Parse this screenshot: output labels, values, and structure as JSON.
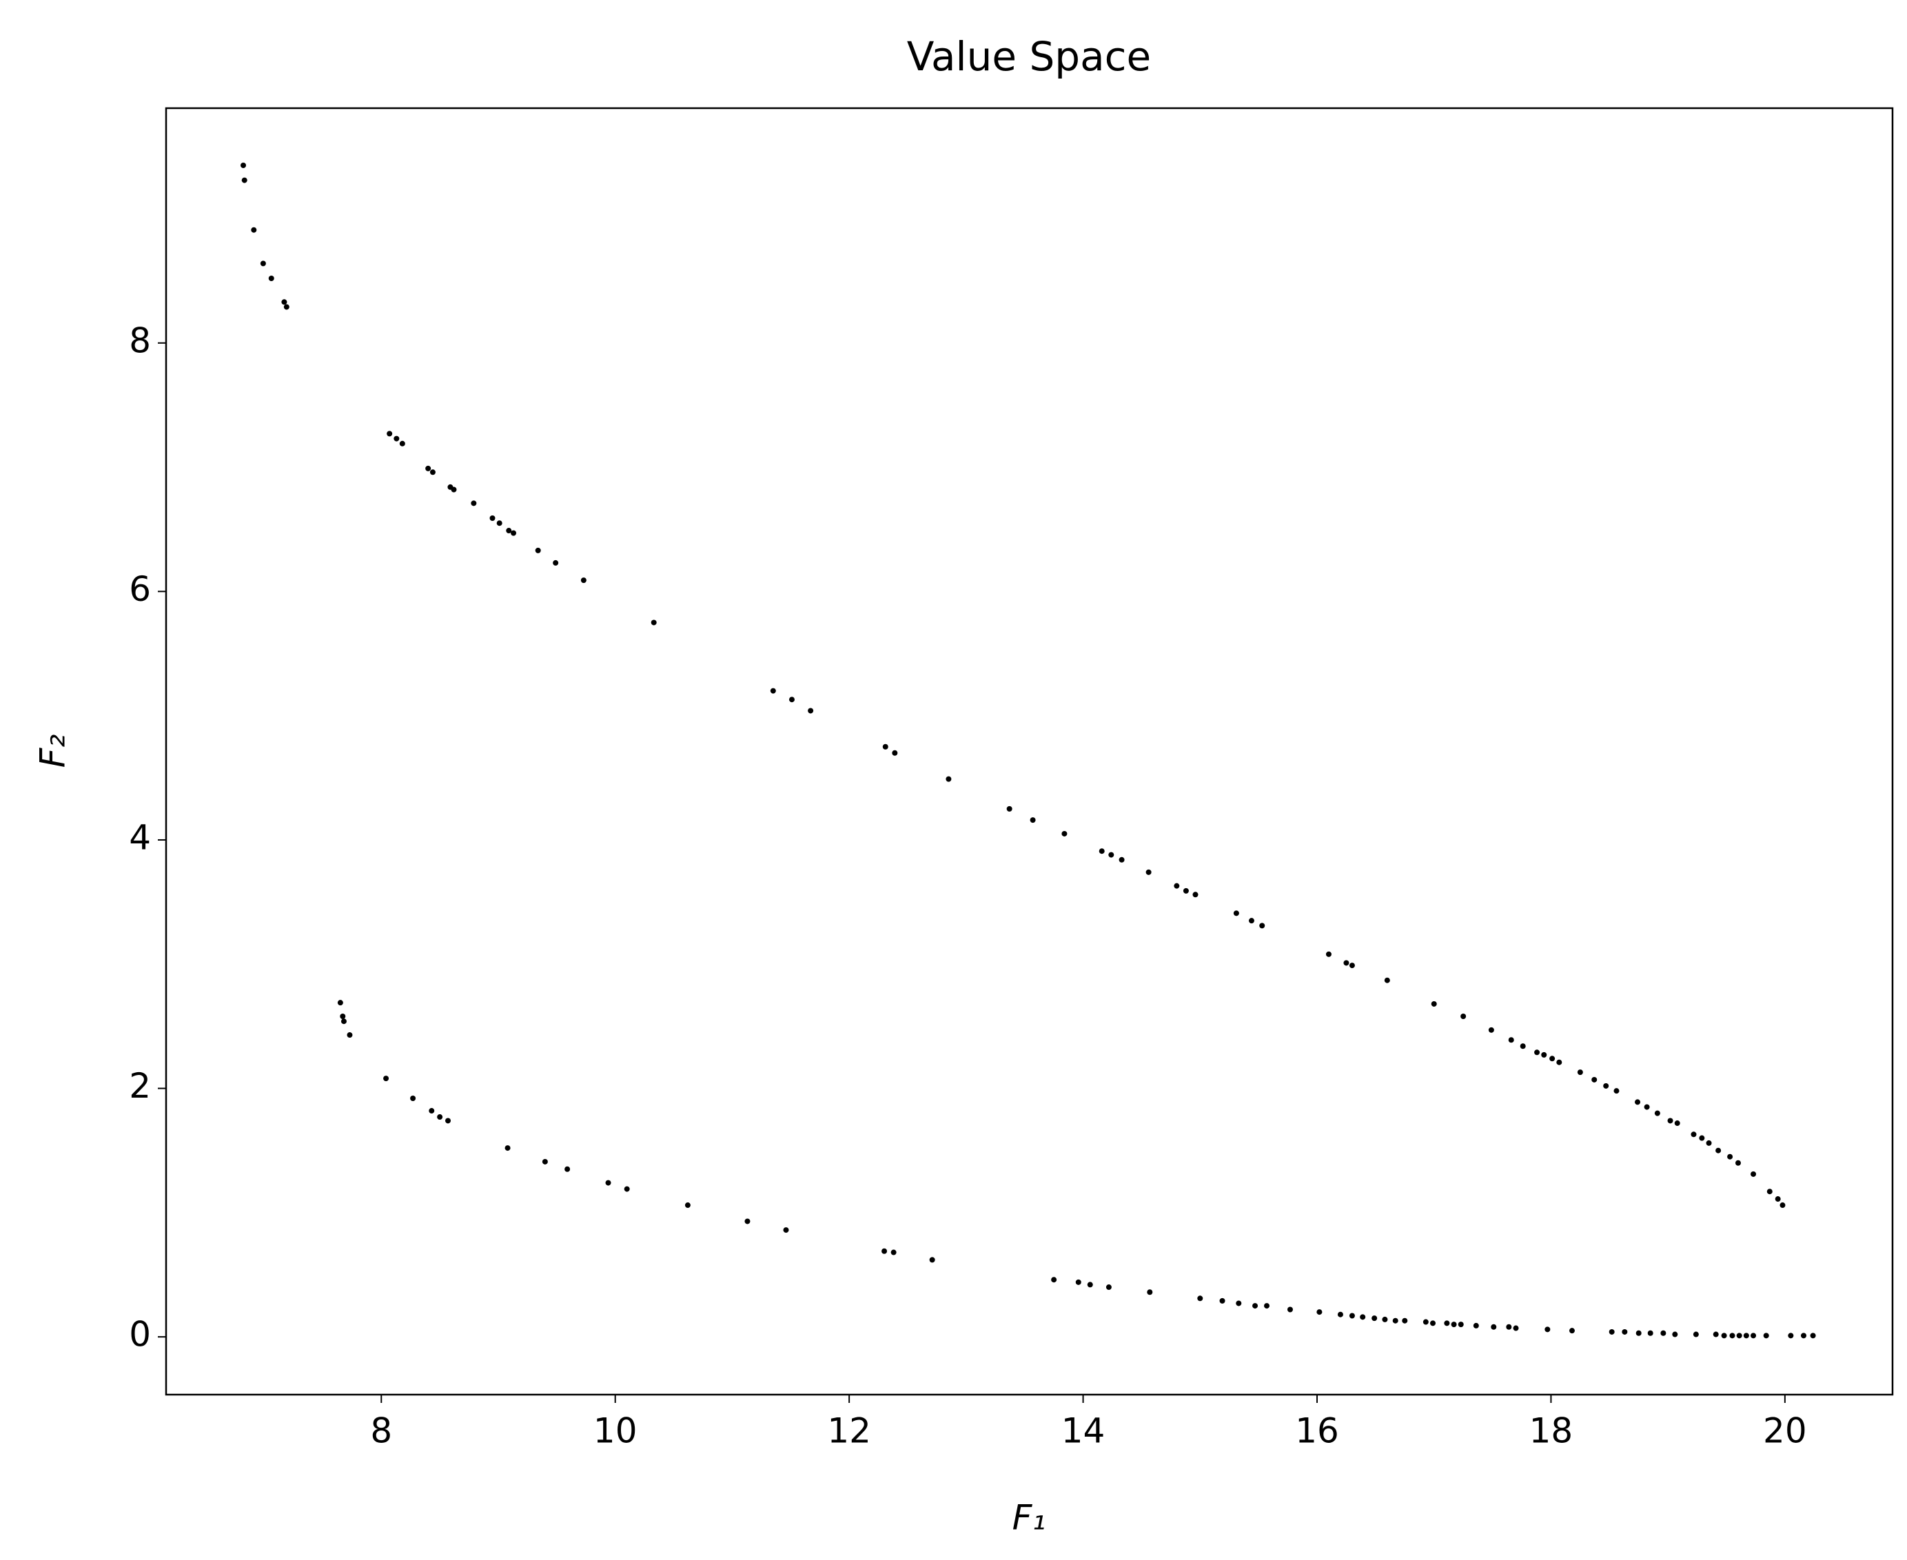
{
  "chart_data": {
    "type": "scatter",
    "title": "Value Space",
    "xlabel": "F₁",
    "ylabel": "F₂",
    "color": "#000000",
    "x": [
      6.82,
      6.83,
      6.91,
      6.99,
      7.06,
      7.17,
      7.19,
      8.07,
      8.13,
      8.18,
      8.4,
      8.44,
      8.59,
      8.62,
      8.79,
      8.95,
      9.01,
      9.09,
      9.13,
      9.34,
      9.49,
      9.73,
      10.33,
      11.35,
      11.51,
      11.67,
      12.31,
      12.39,
      12.85,
      13.37,
      13.57,
      13.84,
      14.16,
      14.24,
      14.33,
      14.56,
      14.8,
      14.88,
      14.96,
      15.31,
      15.44,
      15.53,
      16.1,
      16.25,
      16.3,
      16.6,
      17.0,
      17.25,
      17.49,
      17.66,
      17.76,
      17.88,
      17.94,
      18.01,
      18.07,
      18.25,
      18.37,
      18.47,
      18.56,
      18.74,
      18.82,
      18.91,
      19.02,
      19.08,
      19.22,
      19.29,
      19.35,
      19.43,
      19.53,
      19.6,
      19.73,
      19.87,
      19.94,
      19.98,
      7.65,
      7.67,
      7.68,
      7.73,
      8.04,
      8.27,
      8.43,
      8.5,
      8.57,
      9.08,
      9.4,
      9.59,
      9.94,
      10.1,
      10.62,
      11.13,
      11.46,
      12.3,
      12.38,
      12.71,
      13.75,
      13.96,
      14.06,
      14.22,
      14.57,
      15.0,
      15.19,
      15.33,
      15.47,
      15.57,
      15.77,
      16.02,
      16.2,
      16.3,
      16.39,
      16.49,
      16.58,
      16.67,
      16.75,
      16.93,
      16.99,
      17.11,
      17.17,
      17.23,
      17.36,
      17.51,
      17.64,
      17.7,
      17.97,
      18.18,
      18.52,
      18.63,
      18.75,
      18.85,
      18.96,
      19.06,
      19.24,
      19.41,
      19.48,
      19.55,
      19.61,
      19.67,
      19.73,
      19.84,
      20.05,
      20.16,
      20.24
    ],
    "values": [
      9.43,
      9.31,
      8.91,
      8.64,
      8.52,
      8.33,
      8.29,
      7.27,
      7.23,
      7.19,
      6.99,
      6.96,
      6.84,
      6.82,
      6.71,
      6.59,
      6.55,
      6.49,
      6.47,
      6.33,
      6.23,
      6.09,
      5.75,
      5.2,
      5.13,
      5.04,
      4.75,
      4.7,
      4.49,
      4.25,
      4.16,
      4.05,
      3.91,
      3.88,
      3.84,
      3.74,
      3.63,
      3.59,
      3.56,
      3.41,
      3.35,
      3.31,
      3.08,
      3.01,
      2.99,
      2.87,
      2.68,
      2.58,
      2.47,
      2.39,
      2.34,
      2.29,
      2.27,
      2.24,
      2.21,
      2.13,
      2.07,
      2.02,
      1.98,
      1.89,
      1.85,
      1.8,
      1.74,
      1.72,
      1.63,
      1.6,
      1.56,
      1.5,
      1.45,
      1.4,
      1.31,
      1.17,
      1.11,
      1.06,
      2.69,
      2.58,
      2.54,
      2.43,
      2.08,
      1.92,
      1.82,
      1.77,
      1.74,
      1.52,
      1.41,
      1.35,
      1.24,
      1.19,
      1.06,
      0.93,
      0.86,
      0.69,
      0.68,
      0.62,
      0.46,
      0.44,
      0.42,
      0.4,
      0.36,
      0.31,
      0.29,
      0.27,
      0.25,
      0.25,
      0.22,
      0.2,
      0.18,
      0.17,
      0.16,
      0.15,
      0.14,
      0.13,
      0.13,
      0.12,
      0.11,
      0.11,
      0.1,
      0.1,
      0.09,
      0.08,
      0.08,
      0.07,
      0.06,
      0.05,
      0.04,
      0.04,
      0.03,
      0.03,
      0.03,
      0.02,
      0.02,
      0.02,
      0.01,
      0.01,
      0.01,
      0.01,
      0.01,
      0.01,
      0.01,
      0.01,
      0.01
    ],
    "xlim": [
      6.16,
      20.92
    ],
    "ylim": [
      -0.465,
      9.89
    ],
    "xticks": [
      8,
      10,
      12,
      14,
      16,
      18,
      20
    ],
    "yticks": [
      0,
      2,
      4,
      6,
      8
    ]
  }
}
